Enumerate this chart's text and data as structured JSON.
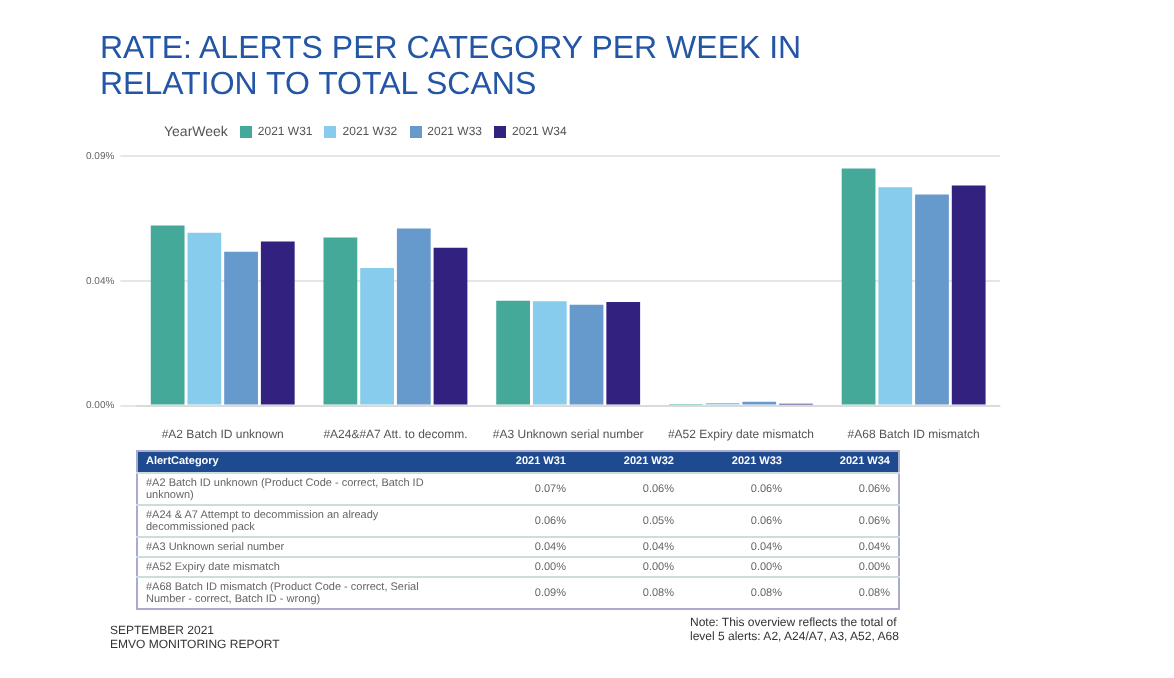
{
  "chart_data": [
    {
      "type": "bar",
      "title": "RATE: ALERTS PER CATEGORY PER WEEK IN RELATION TO TOTAL SCANS",
      "legend_title": "YearWeek",
      "categories": [
        "#A2 Batch ID unknown",
        "#A24&#A7 Att. to decomm.",
        "#A3 Unknown serial number",
        "#A52 Expiry date mismatch",
        "#A68 Batch ID mismatch"
      ],
      "series": [
        {
          "name": "2021 W31",
          "color": "#45a99a",
          "values": [
            0.0649,
            0.0606,
            0.0378,
            0.0006,
            0.0855
          ]
        },
        {
          "name": "2021 W32",
          "color": "#87ccec",
          "values": [
            0.0623,
            0.0496,
            0.0376,
            0.0009,
            0.0787
          ]
        },
        {
          "name": "2021 W33",
          "color": "#6699cc",
          "values": [
            0.0555,
            0.0639,
            0.0364,
            0.0014,
            0.0761
          ]
        },
        {
          "name": "2021 W34",
          "color": "#33217f",
          "values": [
            0.0592,
            0.0569,
            0.0374,
            0.0007,
            0.0794
          ]
        }
      ],
      "ylim": [
        0,
        0.09
      ],
      "yticks": [
        {
          "value": 0,
          "label": "0.00%"
        },
        {
          "value": 0.045,
          "label": "0.04%"
        },
        {
          "value": 0.09,
          "label": "0.09%"
        }
      ],
      "grid": "y",
      "legend": "top left",
      "annotations": [
        "SEPTEMBER 2021",
        "EMVO MONITORING REPORT",
        "Note: This overview reflects the total of level 5 alerts: A2, A24/A7, A3, A52, A68"
      ]
    },
    {
      "type": "other",
      "categories": [
        "AlertCategory",
        "2021 W31",
        "2021 W32",
        "2021 W33",
        "2021 W34"
      ],
      "y_categories": [
        "#A2 Batch ID unknown (Product Code - correct, Batch ID unknown)",
        "#A24 & A7 Attempt to decommission an already decommissioned pack",
        "#A3 Unknown serial number",
        "#A52 Expiry date mismatch",
        "#A68 Batch ID mismatch (Product Code - correct, Serial Number - correct, Batch ID - wrong)"
      ],
      "cell_labels": [
        [
          "0.07%",
          "0.06%",
          "0.06%",
          "0.06%"
        ],
        [
          "0.06%",
          "0.05%",
          "0.06%",
          "0.06%"
        ],
        [
          "0.04%",
          "0.04%",
          "0.04%",
          "0.04%"
        ],
        [
          "0.00%",
          "0.00%",
          "0.00%",
          "0.00%"
        ],
        [
          "0.09%",
          "0.08%",
          "0.08%",
          "0.08%"
        ]
      ]
    }
  ]
}
